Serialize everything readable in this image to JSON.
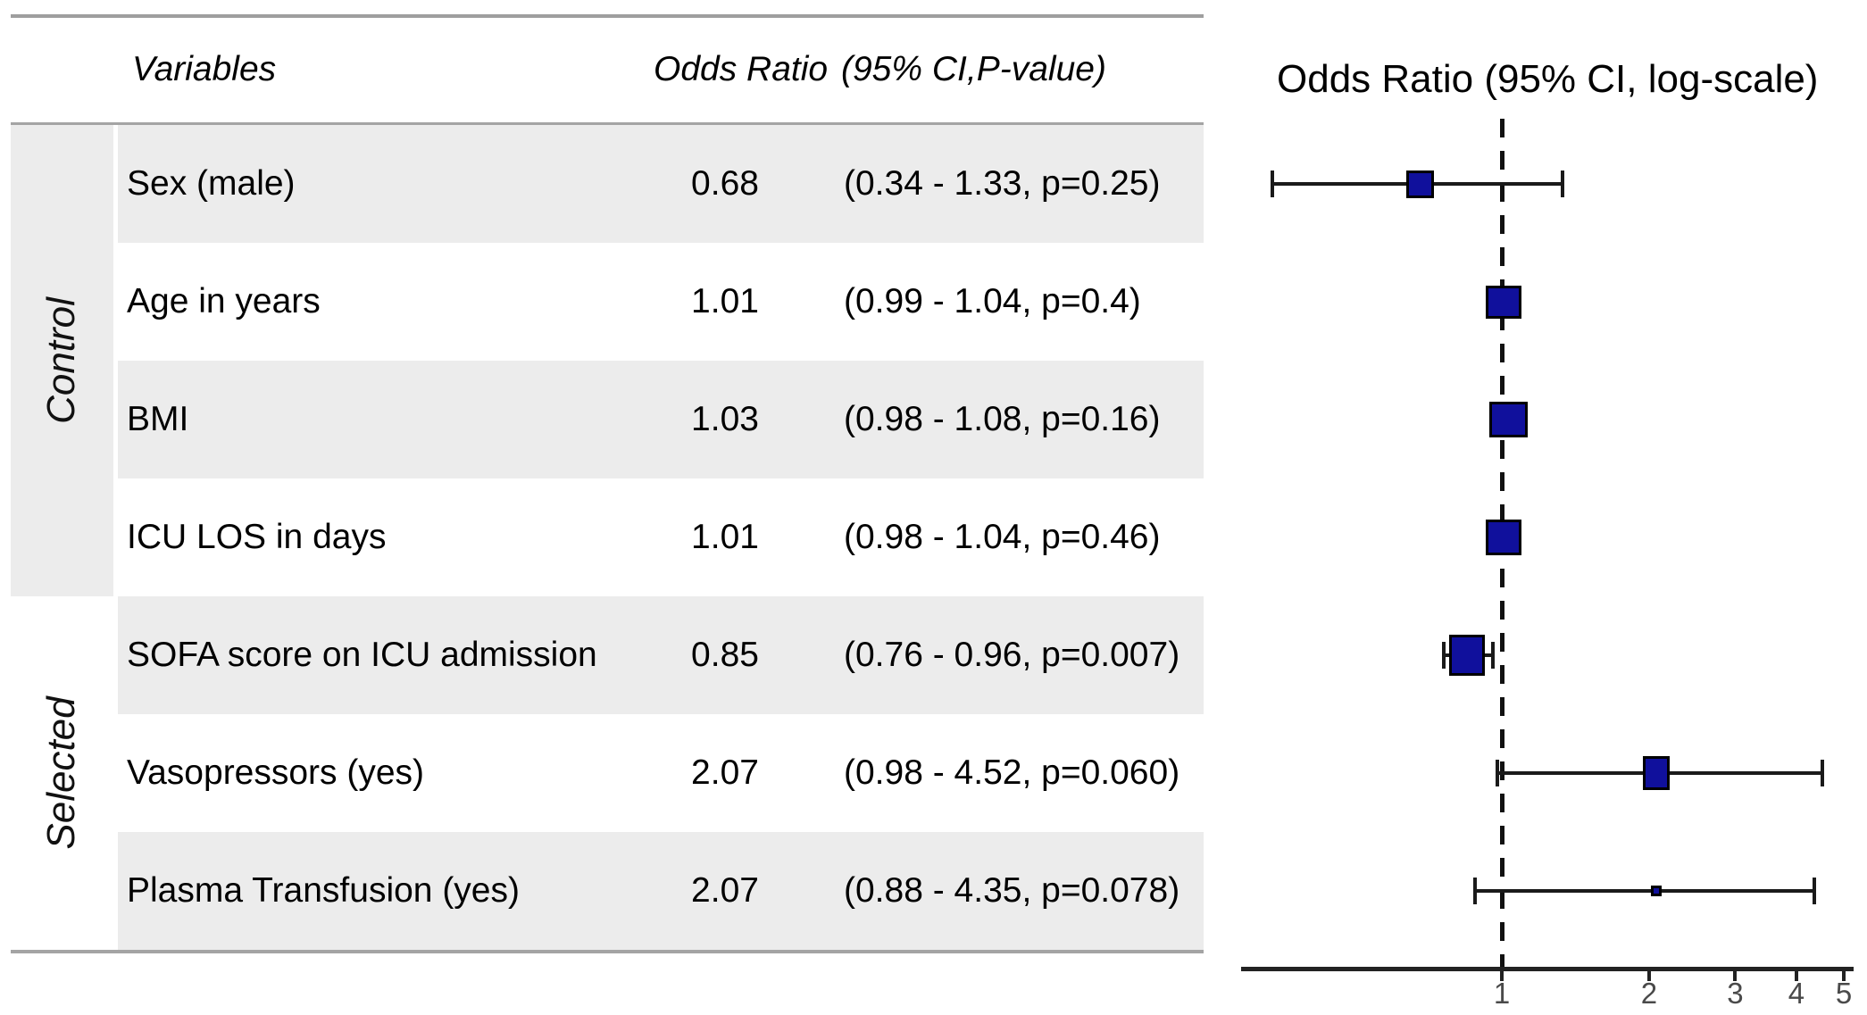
{
  "table": {
    "header": {
      "variables": "Variables",
      "odds_ratio": "Odds Ratio",
      "ci_pvalue": "(95% CI,P-value)"
    },
    "groups": [
      {
        "label": "Control"
      },
      {
        "label": "Selected"
      }
    ],
    "rows": [
      {
        "group": "Control",
        "variable": "Sex (male)",
        "odds_ratio": "0.68",
        "ci": "(0.34 - 1.33, p=0.25)"
      },
      {
        "group": "Control",
        "variable": "Age in years",
        "odds_ratio": "1.01",
        "ci": "(0.99 - 1.04, p=0.4)"
      },
      {
        "group": "Control",
        "variable": "BMI",
        "odds_ratio": "1.03",
        "ci": "(0.98 - 1.08, p=0.16)"
      },
      {
        "group": "Control",
        "variable": "ICU LOS in days",
        "odds_ratio": "1.01",
        "ci": "(0.98 - 1.04, p=0.46)"
      },
      {
        "group": "Selected",
        "variable": "SOFA score on ICU admission",
        "odds_ratio": "0.85",
        "ci": "(0.76 - 0.96, p=0.007)"
      },
      {
        "group": "Selected",
        "variable": "Vasopressors (yes)",
        "odds_ratio": "2.07",
        "ci": "(0.98 - 4.52, p=0.060)"
      },
      {
        "group": "Selected",
        "variable": "Plasma Transfusion (yes)",
        "odds_ratio": "2.07",
        "ci": "(0.88 - 4.35, p=0.078)"
      }
    ]
  },
  "plot": {
    "title": "Odds Ratio (95% CI, log-scale)"
  },
  "colors": {
    "marker_fill": "#10109c",
    "marker_border": "#000000",
    "stripe": "#ececec",
    "rule": "#a4a4a4",
    "plot_line": "#1a1a1a"
  },
  "chart_data": {
    "type": "scatter",
    "subtype": "forest-plot",
    "title": "Odds Ratio (95% CI, log-scale)",
    "x_scale": "log10",
    "x_ticks": [
      1,
      2,
      3,
      4,
      5
    ],
    "x_range": [
      0.3,
      5.2
    ],
    "reference_line_x": 1,
    "grid": false,
    "points": [
      {
        "label": "Sex (male)",
        "group": "Control",
        "or": 0.68,
        "ci_low": 0.34,
        "ci_high": 1.33,
        "p": 0.25,
        "marker_w": 31,
        "marker_h": 31
      },
      {
        "label": "Age in years",
        "group": "Control",
        "or": 1.01,
        "ci_low": 0.99,
        "ci_high": 1.04,
        "p": 0.4,
        "marker_w": 40,
        "marker_h": 37
      },
      {
        "label": "BMI",
        "group": "Control",
        "or": 1.03,
        "ci_low": 0.98,
        "ci_high": 1.08,
        "p": 0.16,
        "marker_w": 43,
        "marker_h": 40
      },
      {
        "label": "ICU LOS in days",
        "group": "Control",
        "or": 1.01,
        "ci_low": 0.98,
        "ci_high": 1.04,
        "p": 0.46,
        "marker_w": 40,
        "marker_h": 40
      },
      {
        "label": "SOFA score on ICU admission",
        "group": "Selected",
        "or": 0.85,
        "ci_low": 0.76,
        "ci_high": 0.96,
        "p": 0.007,
        "marker_w": 40,
        "marker_h": 46
      },
      {
        "label": "Vasopressors (yes)",
        "group": "Selected",
        "or": 2.07,
        "ci_low": 0.98,
        "ci_high": 4.52,
        "p": 0.06,
        "marker_w": 30,
        "marker_h": 38
      },
      {
        "label": "Plasma Transfusion (yes)",
        "group": "Selected",
        "or": 2.07,
        "ci_low": 0.88,
        "ci_high": 4.35,
        "p": 0.078,
        "marker_w": 12,
        "marker_h": 12
      }
    ]
  }
}
